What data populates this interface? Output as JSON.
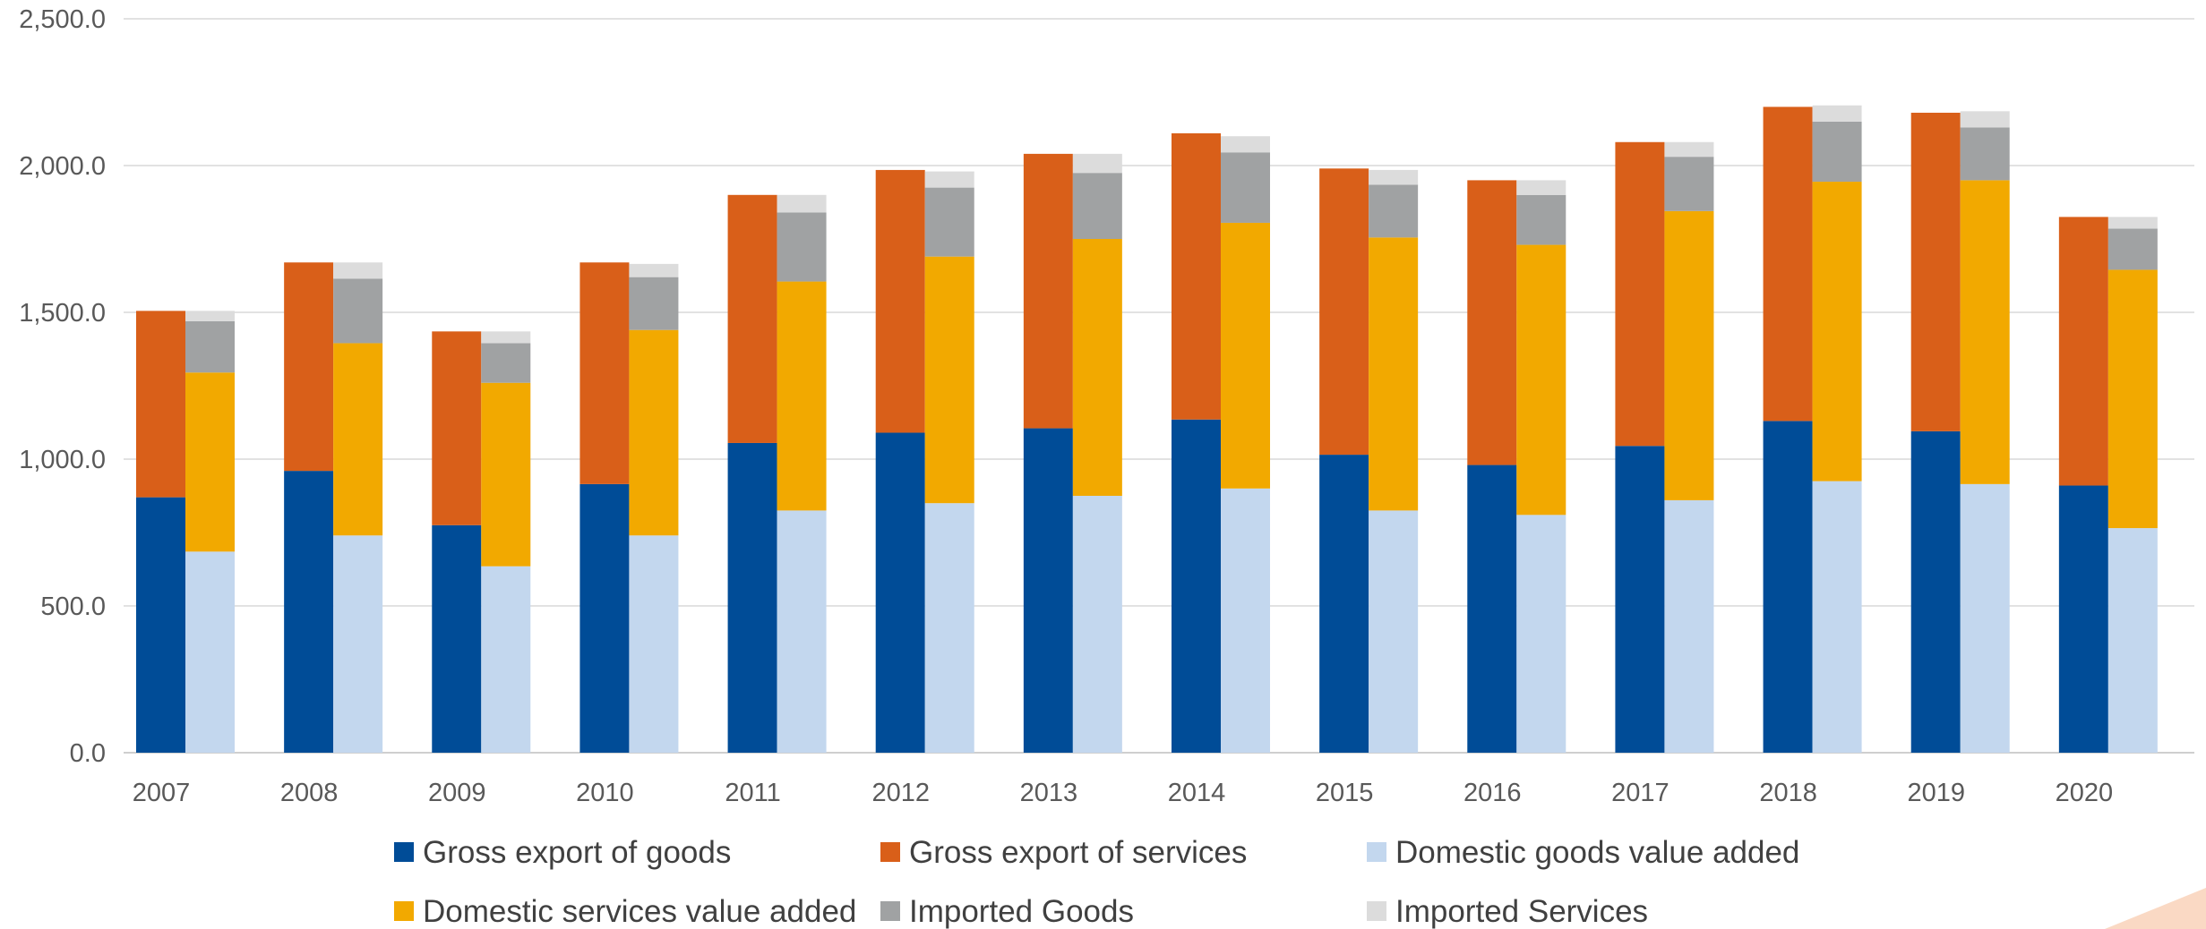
{
  "chart_data": {
    "type": "bar",
    "stacked_groups": true,
    "categories": [
      "2007",
      "2008",
      "2009",
      "2010",
      "2011",
      "2012",
      "2013",
      "2014",
      "2015",
      "2016",
      "2017",
      "2018",
      "2019",
      "2020"
    ],
    "ylim": [
      0,
      2500
    ],
    "yticks": [
      "0.0",
      "500.0",
      "1,000.0",
      "1,500.0",
      "2,000.0",
      "2,500.0"
    ],
    "grid": true,
    "legend_position": "bottom",
    "stacks": [
      {
        "name": "gross",
        "series": [
          "Gross export of goods",
          "Gross export of services"
        ]
      },
      {
        "name": "value-added",
        "series": [
          "Domestic goods value added",
          "Domestic services value added",
          "Imported Goods",
          "Imported Services"
        ]
      }
    ],
    "series": [
      {
        "name": "Gross export of goods",
        "color": "#004C97",
        "values": [
          870,
          960,
          775,
          915,
          1055,
          1090,
          1105,
          1135,
          1015,
          980,
          1045,
          1130,
          1095,
          910
        ]
      },
      {
        "name": "Gross export of services",
        "color": "#D95F19",
        "values": [
          635,
          710,
          660,
          755,
          845,
          895,
          935,
          975,
          975,
          970,
          1035,
          1070,
          1085,
          915
        ]
      },
      {
        "name": "Domestic goods value added",
        "color": "#C3D7EE",
        "values": [
          685,
          740,
          635,
          740,
          825,
          850,
          875,
          900,
          825,
          810,
          860,
          925,
          915,
          765
        ]
      },
      {
        "name": "Domestic services value added",
        "color": "#F2A900",
        "values": [
          610,
          655,
          625,
          700,
          780,
          840,
          875,
          905,
          930,
          920,
          985,
          1020,
          1035,
          880
        ]
      },
      {
        "name": "Imported Goods",
        "color": "#A0A2A3",
        "values": [
          175,
          220,
          135,
          180,
          235,
          235,
          225,
          240,
          180,
          170,
          185,
          205,
          180,
          140
        ]
      },
      {
        "name": "Imported Services",
        "color": "#DCDCDC",
        "values": [
          35,
          55,
          40,
          45,
          60,
          55,
          65,
          55,
          50,
          50,
          50,
          55,
          55,
          40
        ]
      }
    ]
  },
  "legend": {
    "items": [
      {
        "label": "Gross export of goods",
        "color": "#004C97"
      },
      {
        "label": "Gross export of services",
        "color": "#D95F19"
      },
      {
        "label": "Domestic goods value added",
        "color": "#C3D7EE"
      },
      {
        "label": "Domestic services value added",
        "color": "#F2A900"
      },
      {
        "label": "Imported Goods",
        "color": "#A0A2A3"
      },
      {
        "label": "Imported Services",
        "color": "#DCDCDC"
      }
    ]
  },
  "colors": {
    "gridline": "#D9D9D9",
    "axis": "#BFBFBF",
    "text": "#595959",
    "corner_accent": "#FAD9C4"
  }
}
